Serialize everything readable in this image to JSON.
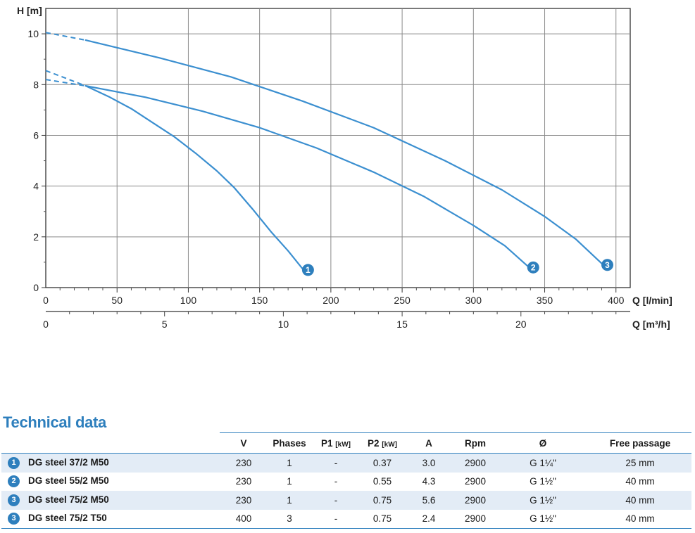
{
  "chart_data": {
    "type": "line",
    "ylabel": "H [m]",
    "xlabel": "Q [l/min]",
    "xlabel2": "Q [m³/h]",
    "xlim": [
      0,
      410
    ],
    "ylim": [
      0,
      11
    ],
    "x_ticks": [
      "0",
      "50",
      "100",
      "150",
      "200",
      "250",
      "300",
      "350",
      "400"
    ],
    "x2_ticks": [
      "0",
      "5",
      "10",
      "15",
      "20"
    ],
    "y_ticks": [
      "0",
      "2",
      "4",
      "6",
      "8",
      "10"
    ],
    "grid": true,
    "series": [
      {
        "name": "1",
        "color": "#3b8fd0",
        "dashed": [
          [
            0,
            8.2
          ],
          [
            28,
            7.95
          ]
        ],
        "points": [
          [
            28,
            7.95
          ],
          [
            45,
            7.5
          ],
          [
            60,
            7.05
          ],
          [
            75,
            6.5
          ],
          [
            90,
            5.95
          ],
          [
            105,
            5.3
          ],
          [
            120,
            4.6
          ],
          [
            132,
            3.95
          ],
          [
            145,
            3.1
          ],
          [
            158,
            2.2
          ],
          [
            170,
            1.45
          ],
          [
            180,
            0.75
          ]
        ]
      },
      {
        "name": "2",
        "color": "#3b8fd0",
        "dashed": [
          [
            0,
            8.55
          ],
          [
            28,
            7.95
          ]
        ],
        "points": [
          [
            28,
            7.95
          ],
          [
            70,
            7.5
          ],
          [
            110,
            6.95
          ],
          [
            150,
            6.3
          ],
          [
            190,
            5.5
          ],
          [
            230,
            4.55
          ],
          [
            265,
            3.6
          ],
          [
            300,
            2.45
          ],
          [
            322,
            1.65
          ],
          [
            338,
            0.85
          ]
        ]
      },
      {
        "name": "3",
        "color": "#3b8fd0",
        "dashed": [
          [
            0,
            10.05
          ],
          [
            28,
            9.75
          ]
        ],
        "points": [
          [
            28,
            9.75
          ],
          [
            80,
            9.05
          ],
          [
            130,
            8.3
          ],
          [
            180,
            7.35
          ],
          [
            230,
            6.3
          ],
          [
            280,
            5.0
          ],
          [
            320,
            3.85
          ],
          [
            350,
            2.8
          ],
          [
            372,
            1.9
          ],
          [
            390,
            0.95
          ]
        ]
      }
    ]
  },
  "technical": {
    "title": "Technical data",
    "headers": {
      "v": "V",
      "phases": "Phases",
      "p1": "P1",
      "p1_unit": "[kW]",
      "p2": "P2",
      "p2_unit": "[kW]",
      "a": "A",
      "rpm": "Rpm",
      "dia": "Ø",
      "free": "Free passage"
    },
    "rows": [
      {
        "num": "1",
        "model": "DG steel 37/2 M50",
        "v": "230",
        "phases": "1",
        "p1": "-",
        "p2": "0.37",
        "a": "3.0",
        "rpm": "2900",
        "dia": "G 1¼\"",
        "free": "25 mm"
      },
      {
        "num": "2",
        "model": "DG steel 55/2 M50",
        "v": "230",
        "phases": "1",
        "p1": "-",
        "p2": "0.55",
        "a": "4.3",
        "rpm": "2900",
        "dia": "G 1½\"",
        "free": "40 mm"
      },
      {
        "num": "3",
        "model": "DG steel 75/2 M50",
        "v": "230",
        "phases": "1",
        "p1": "-",
        "p2": "0.75",
        "a": "5.6",
        "rpm": "2900",
        "dia": "G 1½\"",
        "free": "40 mm"
      },
      {
        "num": "3",
        "model": "DG steel 75/2 T50",
        "v": "400",
        "phases": "3",
        "p1": "-",
        "p2": "0.75",
        "a": "2.4",
        "rpm": "2900",
        "dia": "G 1½\"",
        "free": "40 mm"
      }
    ]
  }
}
